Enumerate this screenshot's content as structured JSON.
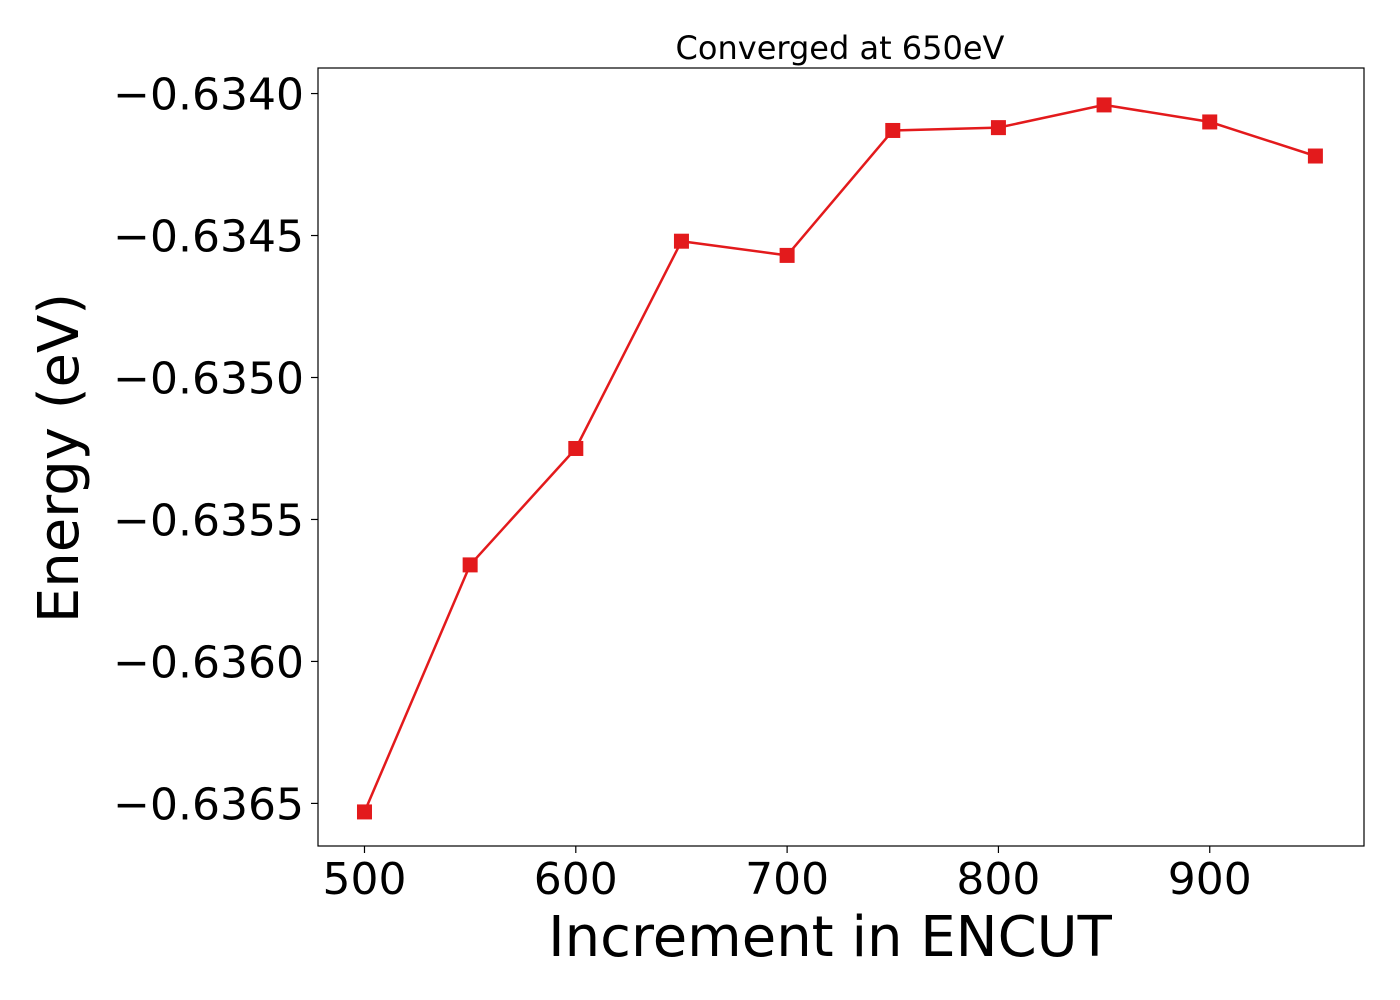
{
  "chart_data": {
    "type": "line",
    "title": "Converged at 650eV",
    "xlabel": "Increment in ENCUT",
    "ylabel": "Energy (eV)",
    "x": [
      500,
      550,
      600,
      650,
      700,
      750,
      800,
      850,
      900,
      950
    ],
    "series": [
      {
        "values": [
          -0.63653,
          -0.63566,
          -0.63525,
          -0.63452,
          -0.63457,
          -0.63413,
          -0.63412,
          -0.63404,
          -0.6341,
          -0.63422
        ],
        "color": "#e31a1c",
        "marker": "square"
      }
    ],
    "xlim": [
      478,
      973
    ],
    "ylim": [
      -0.63665,
      -0.63391
    ],
    "xticks": [
      500,
      600,
      700,
      800,
      900
    ],
    "xtick_labels": [
      "500",
      "600",
      "700",
      "800",
      "900"
    ],
    "yticks": [
      -0.634,
      -0.6345,
      -0.635,
      -0.6355,
      -0.636,
      -0.6365
    ],
    "ytick_labels": [
      "−0.6340",
      "−0.6345",
      "−0.6350",
      "−0.6355",
      "−0.6360",
      "−0.6365"
    ],
    "grid": false,
    "legend": "none"
  }
}
